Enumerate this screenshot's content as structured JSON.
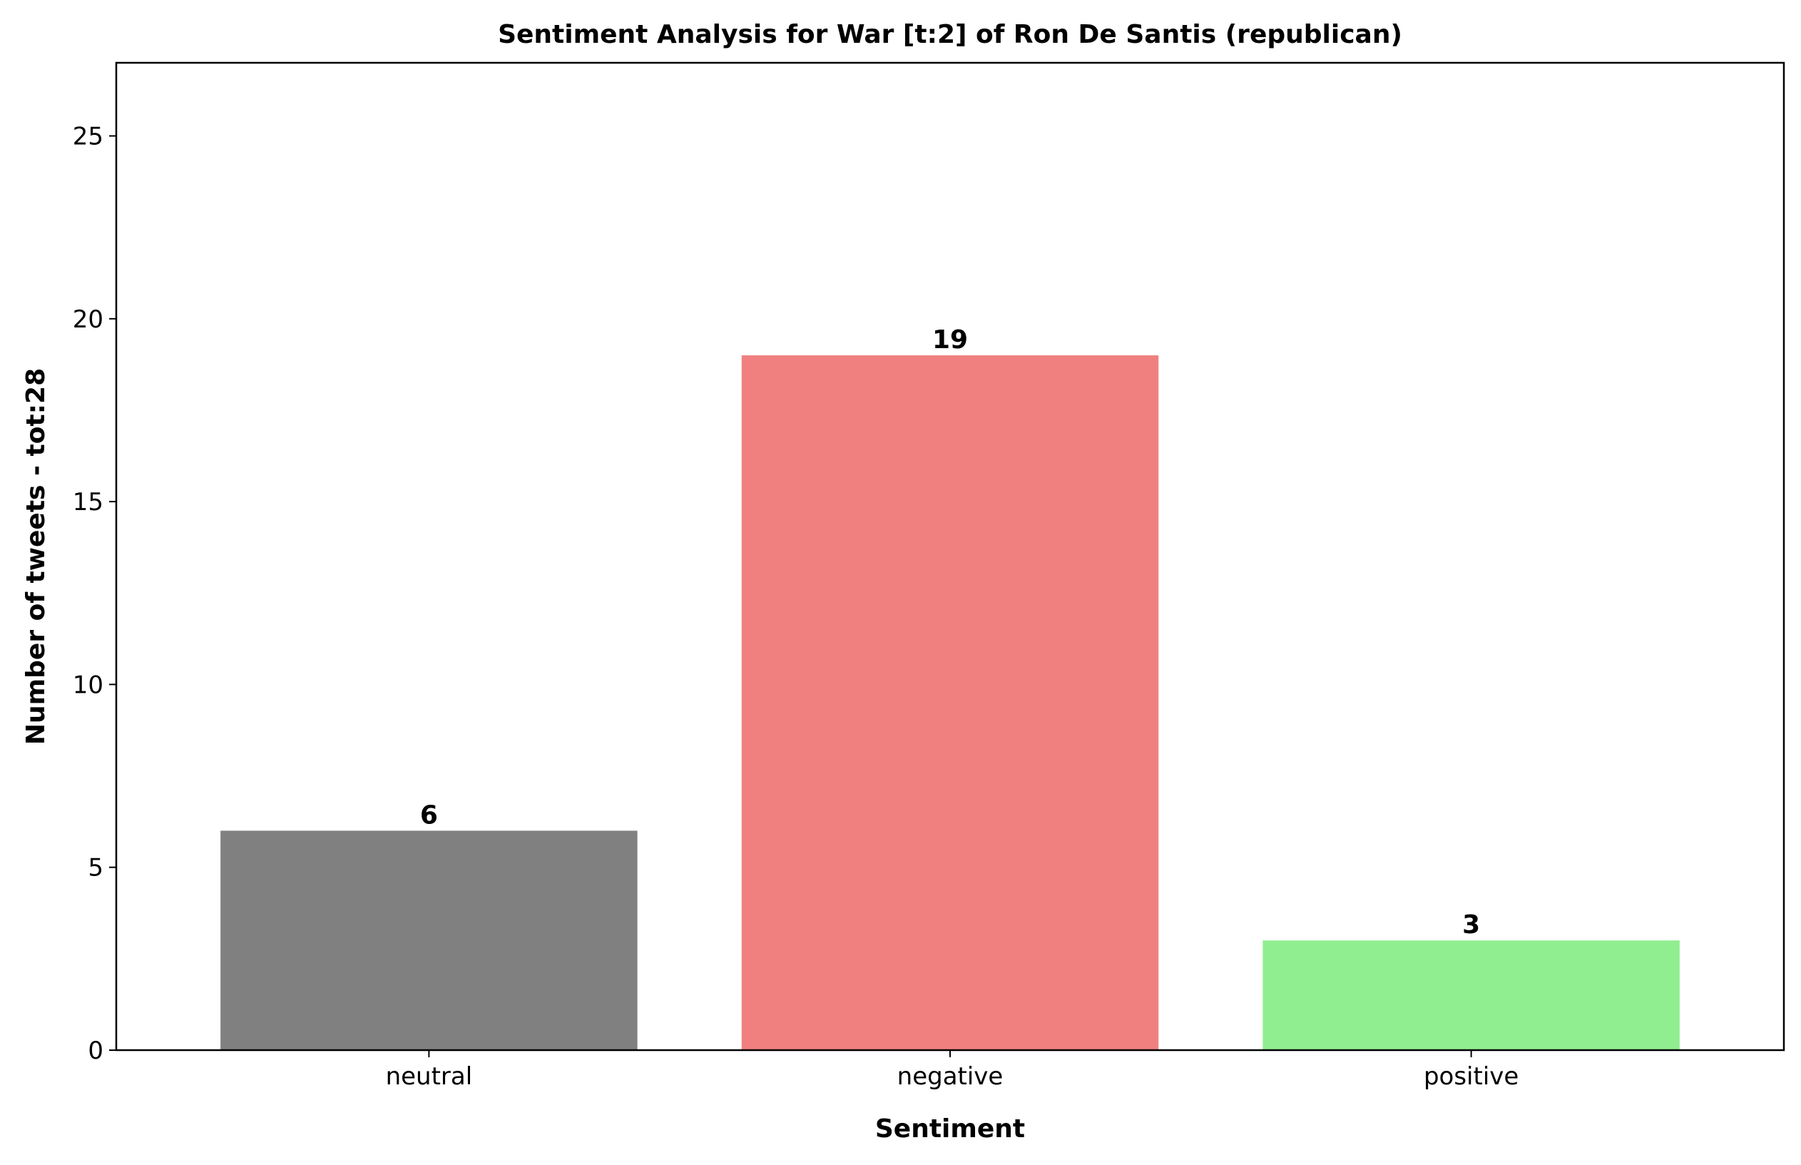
{
  "chart_data": {
    "type": "bar",
    "title": "Sentiment Analysis for War [t:2] of Ron De Santis (republican)",
    "xlabel": "Sentiment",
    "ylabel": "Number of tweets - tot:28",
    "categories": [
      "neutral",
      "negative",
      "positive"
    ],
    "values": [
      6,
      19,
      3
    ],
    "colors": [
      "#808080",
      "#f08080",
      "#90ee90"
    ],
    "data_labels": [
      "6",
      "19",
      "3"
    ],
    "ylim": [
      0,
      27
    ],
    "yticks": [
      0,
      5,
      10,
      15,
      20,
      25
    ],
    "ytick_labels": [
      "0",
      "5",
      "10",
      "15",
      "20",
      "25"
    ],
    "grid": false,
    "legend": "none"
  }
}
